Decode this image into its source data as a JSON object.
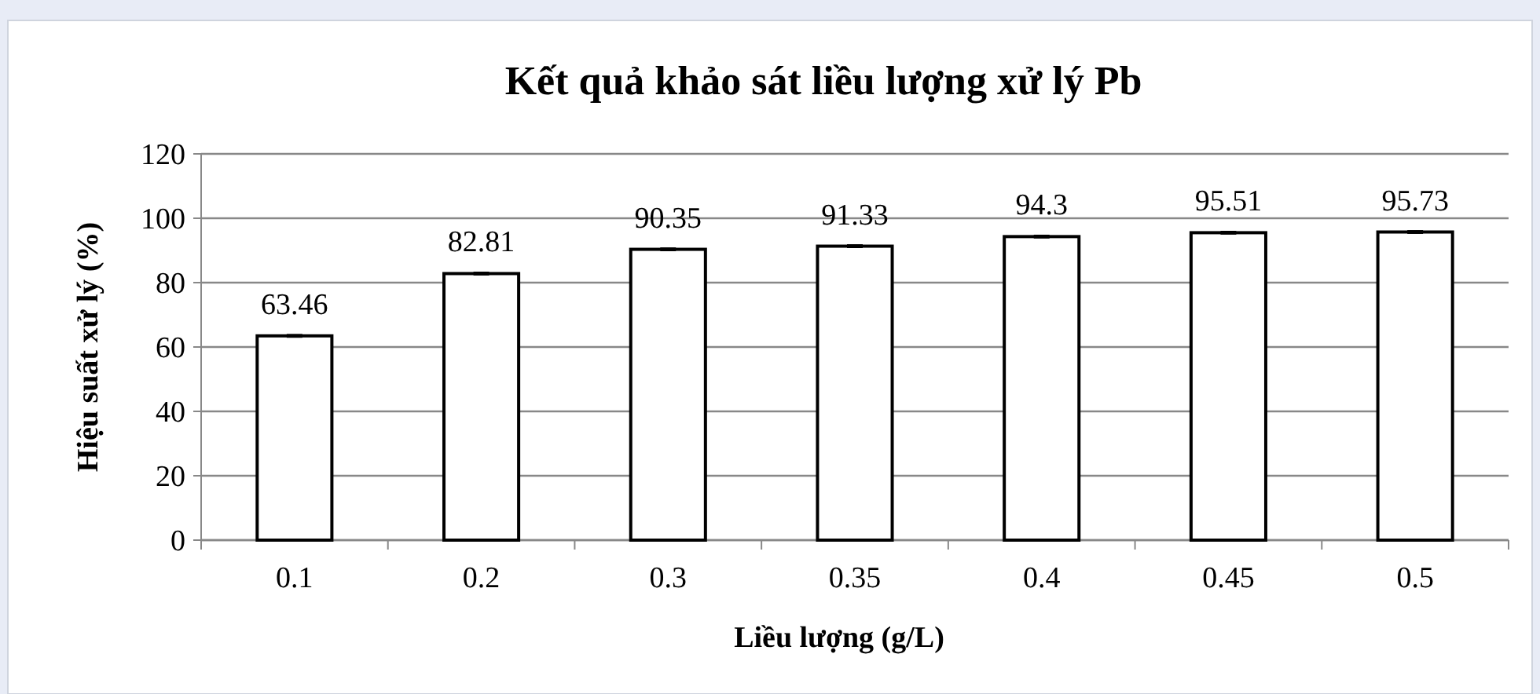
{
  "chart_data": {
    "type": "bar",
    "title": "Kết quả khảo sát liều lượng xử lý Pb",
    "xlabel": "Liều lượng (g/L)",
    "ylabel": "Hiệu suất xử lý (%)",
    "categories": [
      "0.1",
      "0.2",
      "0.3",
      "0.35",
      "0.4",
      "0.45",
      "0.5"
    ],
    "values": [
      63.46,
      82.81,
      90.35,
      91.33,
      94.3,
      95.51,
      95.73
    ],
    "errors": [
      0.3,
      0.3,
      0.3,
      0.3,
      0.3,
      0.3,
      0.3
    ],
    "color": "#ffffff",
    "ylim": [
      0,
      120
    ],
    "yticks": [
      0,
      20,
      40,
      60,
      80,
      100,
      120
    ],
    "grid": "y",
    "data_labels": true
  }
}
